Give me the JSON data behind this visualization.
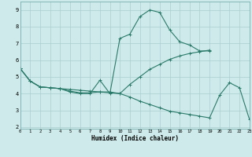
{
  "xlabel": "Humidex (Indice chaleur)",
  "bg_color": "#ceeaea",
  "line_color": "#2a7a6a",
  "grid_color": "#aacece",
  "line1_x": [
    0,
    1,
    2,
    3,
    4,
    5,
    6,
    7,
    8,
    9,
    10,
    11,
    12,
    13,
    14,
    15,
    16,
    17,
    18,
    19
  ],
  "line1_y": [
    5.5,
    4.75,
    4.4,
    4.35,
    4.3,
    4.1,
    4.0,
    4.0,
    4.8,
    4.0,
    7.3,
    7.55,
    8.6,
    9.0,
    8.85,
    7.8,
    7.1,
    6.9,
    6.55,
    6.55
  ],
  "line2_x": [
    0,
    1,
    2,
    3,
    4,
    5,
    6,
    7,
    8,
    9,
    10,
    11,
    12,
    13,
    14,
    15,
    16,
    17,
    18,
    19
  ],
  "line2_y": [
    5.5,
    4.75,
    4.4,
    4.35,
    4.3,
    4.25,
    4.2,
    4.15,
    4.1,
    4.05,
    4.0,
    4.55,
    5.0,
    5.45,
    5.75,
    6.05,
    6.25,
    6.4,
    6.5,
    6.6
  ],
  "line3_x": [
    0,
    1,
    2,
    3,
    4,
    5,
    6,
    7,
    8,
    9,
    10,
    11,
    12,
    13,
    14,
    15,
    16,
    17,
    18,
    19,
    20,
    21,
    22,
    23
  ],
  "line3_y": [
    5.5,
    4.75,
    4.4,
    4.35,
    4.3,
    4.15,
    4.05,
    4.05,
    4.1,
    4.1,
    4.0,
    3.8,
    3.55,
    3.35,
    3.15,
    2.95,
    2.85,
    2.75,
    2.65,
    2.55,
    3.9,
    4.65,
    4.35,
    2.45
  ],
  "xlim": [
    0,
    23
  ],
  "ylim": [
    1.9,
    9.5
  ],
  "yticks": [
    2,
    3,
    4,
    5,
    6,
    7,
    8,
    9
  ],
  "xticks": [
    0,
    1,
    2,
    3,
    4,
    5,
    6,
    7,
    8,
    9,
    10,
    11,
    12,
    13,
    14,
    15,
    16,
    17,
    18,
    19,
    20,
    21,
    22,
    23
  ]
}
